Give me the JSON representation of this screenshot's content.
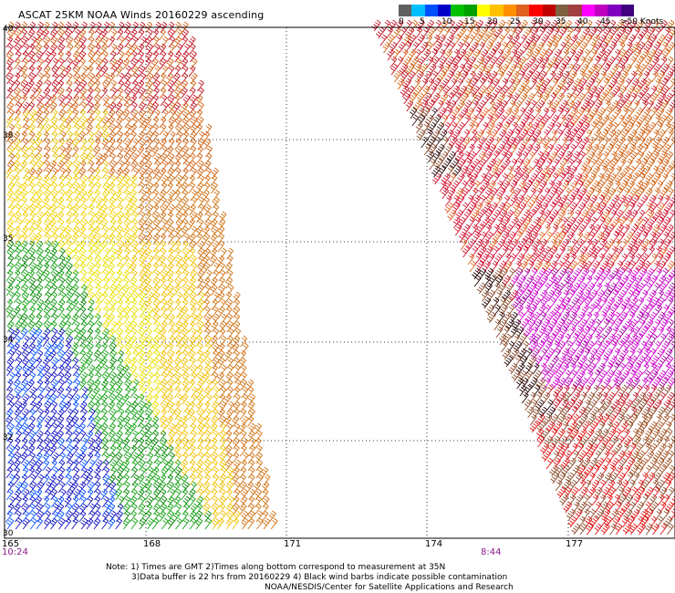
{
  "title": "ASCAT 25KM NOAA Winds 20160229 ascending",
  "colorbar": {
    "colors": [
      "#606060",
      "#00bfff",
      "#0050ff",
      "#0000c8",
      "#00c000",
      "#00a000",
      "#ffff00",
      "#ffc000",
      "#ff9000",
      "#e06020",
      "#ff0000",
      "#c00000",
      "#806040",
      "#a04040",
      "#ff00ff",
      "#c000c0",
      "#8000c0",
      "#400080"
    ],
    "labels": [
      "0",
      "5",
      "10",
      "15",
      "20",
      "25",
      "30",
      "35",
      "40",
      "45",
      ">50 Knots"
    ]
  },
  "lat_labels": [
    "40",
    "38",
    "35",
    "34",
    "32",
    "30"
  ],
  "lon_labels": [
    "165",
    "168",
    "171",
    "174",
    "177"
  ],
  "time_labels": [
    "10:24",
    "8:44"
  ],
  "notes": [
    "Note: 1) Times are GMT 2)Times along bottom correspond to measurement at 35N",
    "3)Data buffer is 22 hrs from 20160229 4) Black wind barbs indicate possible contamination",
    "NOAA/NESDIS/Center for Satellite Applications and Research"
  ],
  "swaths": [
    {
      "name": "west-swath",
      "time": "10:24",
      "dominant_speed_colors": [
        "#c01020",
        "#d06010",
        "#e8d000",
        "#10a010",
        "#1010c0"
      ]
    },
    {
      "name": "east-swath",
      "time": "8:44",
      "dominant_speed_colors": [
        "#c01020",
        "#d06010",
        "#cc00cc",
        "#8a4a2a",
        "#200000"
      ]
    }
  ]
}
